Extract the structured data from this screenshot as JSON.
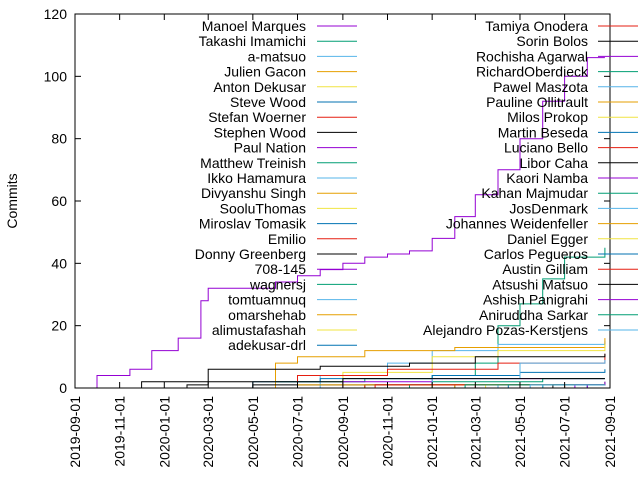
{
  "chart_data": {
    "type": "line",
    "title": "",
    "xlabel": "",
    "ylabel": "Commits",
    "ylim": [
      0,
      120
    ],
    "xlim": [
      "2019-09-01",
      "2021-09-01"
    ],
    "yticks": [
      0,
      20,
      40,
      60,
      80,
      100,
      120
    ],
    "xticks": [
      "2019-09-01",
      "2019-11-01",
      "2020-01-01",
      "2020-03-01",
      "2020-05-01",
      "2020-07-01",
      "2020-09-01",
      "2020-11-01",
      "2021-01-01",
      "2021-03-01",
      "2021-05-01",
      "2021-07-01",
      "2021-09-01"
    ],
    "grid": false,
    "legend_position": "inside, two columns along the top",
    "series": [
      {
        "name": "Manoel Marques",
        "color": "#9400d3",
        "points": [
          [
            "2019-09-01",
            0
          ],
          [
            "2019-10-01",
            4
          ],
          [
            "2019-11-15",
            6
          ],
          [
            "2019-12-15",
            12
          ],
          [
            "2020-01-20",
            16
          ],
          [
            "2020-02-20",
            28
          ],
          [
            "2020-03-01",
            32
          ],
          [
            "2020-06-01",
            34
          ],
          [
            "2020-07-01",
            36
          ],
          [
            "2020-08-01",
            38
          ],
          [
            "2020-09-01",
            40
          ],
          [
            "2020-10-01",
            42
          ],
          [
            "2020-11-01",
            43
          ],
          [
            "2020-12-01",
            44
          ],
          [
            "2021-01-01",
            48
          ],
          [
            "2021-02-01",
            55
          ],
          [
            "2021-03-01",
            62
          ],
          [
            "2021-04-01",
            70
          ],
          [
            "2021-05-01",
            80
          ],
          [
            "2021-06-01",
            92
          ],
          [
            "2021-07-01",
            100
          ],
          [
            "2021-08-01",
            106
          ],
          [
            "2021-08-25",
            106
          ]
        ]
      },
      {
        "name": "Takashi Imamichi",
        "color": "#009e73",
        "points": [
          [
            "2019-12-01",
            0
          ],
          [
            "2020-06-01",
            2
          ],
          [
            "2020-10-01",
            3
          ],
          [
            "2021-01-01",
            4
          ],
          [
            "2021-03-01",
            8
          ],
          [
            "2021-04-01",
            20
          ],
          [
            "2021-05-01",
            27
          ],
          [
            "2021-06-01",
            35
          ],
          [
            "2021-07-01",
            42
          ],
          [
            "2021-08-25",
            45
          ]
        ]
      },
      {
        "name": "a-matsuo",
        "color": "#56b4e9",
        "points": [
          [
            "2020-04-01",
            0
          ],
          [
            "2020-08-01",
            4
          ],
          [
            "2020-11-01",
            8
          ],
          [
            "2021-01-01",
            12
          ],
          [
            "2021-04-01",
            14
          ],
          [
            "2021-08-25",
            15
          ]
        ]
      },
      {
        "name": "Julien Gacon",
        "color": "#e69f00",
        "points": [
          [
            "2020-05-01",
            0
          ],
          [
            "2020-06-01",
            8
          ],
          [
            "2020-07-01",
            10
          ],
          [
            "2020-10-01",
            12
          ],
          [
            "2021-02-01",
            13
          ],
          [
            "2021-08-25",
            16
          ]
        ]
      },
      {
        "name": "Anton Dekusar",
        "color": "#f0e442",
        "points": [
          [
            "2020-05-15",
            0
          ],
          [
            "2020-09-01",
            5
          ],
          [
            "2021-01-01",
            10
          ],
          [
            "2021-04-01",
            12
          ],
          [
            "2021-08-25",
            14
          ]
        ]
      },
      {
        "name": "Steve Wood",
        "color": "#0072b2",
        "points": [
          [
            "2019-12-15",
            0
          ],
          [
            "2020-05-01",
            2
          ],
          [
            "2020-08-01",
            3
          ],
          [
            "2021-01-01",
            4
          ],
          [
            "2021-05-01",
            5
          ],
          [
            "2021-08-25",
            6
          ]
        ]
      },
      {
        "name": "Stefan Woerner",
        "color": "#e51e10",
        "points": [
          [
            "2020-04-01",
            0
          ],
          [
            "2020-07-01",
            4
          ],
          [
            "2020-11-01",
            6
          ],
          [
            "2021-04-01",
            8
          ],
          [
            "2021-08-25",
            11
          ]
        ]
      },
      {
        "name": "Stephen Wood",
        "color": "#000000",
        "points": [
          [
            "2019-12-01",
            0
          ],
          [
            "2020-02-01",
            1
          ],
          [
            "2020-03-01",
            6
          ],
          [
            "2020-08-01",
            7
          ],
          [
            "2020-12-01",
            8
          ],
          [
            "2021-03-01",
            10
          ],
          [
            "2021-08-25",
            11
          ]
        ]
      },
      {
        "name": "Paul Nation",
        "color": "#9400d3",
        "points": [
          [
            "2020-05-01",
            0
          ],
          [
            "2020-09-01",
            2
          ],
          [
            "2021-01-01",
            3
          ],
          [
            "2021-08-25",
            3
          ]
        ]
      },
      {
        "name": "Matthew Treinish",
        "color": "#009e73",
        "points": [
          [
            "2020-05-15",
            0
          ],
          [
            "2020-10-01",
            1
          ],
          [
            "2021-01-01",
            2
          ],
          [
            "2021-06-01",
            3
          ],
          [
            "2021-08-25",
            3
          ]
        ]
      },
      {
        "name": "Ikko Hamamura",
        "color": "#56b4e9",
        "points": [
          [
            "2020-11-01",
            0
          ],
          [
            "2021-01-01",
            3
          ],
          [
            "2021-05-01",
            8
          ],
          [
            "2021-08-25",
            9
          ]
        ]
      },
      {
        "name": "Divyanshu Singh",
        "color": "#e69f00",
        "points": [
          [
            "2021-03-01",
            0
          ],
          [
            "2021-05-01",
            1
          ],
          [
            "2021-08-25",
            2
          ]
        ]
      },
      {
        "name": "SooluThomas",
        "color": "#f0e442",
        "points": [
          [
            "2020-09-01",
            0
          ],
          [
            "2021-01-01",
            1
          ],
          [
            "2021-08-25",
            2
          ]
        ]
      },
      {
        "name": "Miroslav Tomasik",
        "color": "#0072b2",
        "points": [
          [
            "2020-10-01",
            0
          ],
          [
            "2021-02-01",
            1
          ],
          [
            "2021-08-25",
            2
          ]
        ]
      },
      {
        "name": "Emilio",
        "color": "#e51e10",
        "points": [
          [
            "2020-07-01",
            0
          ],
          [
            "2020-10-01",
            1
          ],
          [
            "2021-08-25",
            1
          ]
        ]
      },
      {
        "name": "Donny Greenberg",
        "color": "#000000",
        "points": [
          [
            "2019-11-01",
            0
          ],
          [
            "2019-12-01",
            2
          ],
          [
            "2020-06-01",
            2
          ],
          [
            "2020-09-01",
            3
          ],
          [
            "2021-08-25",
            3
          ]
        ]
      },
      {
        "name": "708-145",
        "color": "#9400d3",
        "points": [
          [
            "2021-01-01",
            0
          ],
          [
            "2021-04-01",
            1
          ],
          [
            "2021-08-25",
            2
          ]
        ]
      },
      {
        "name": "wagnersj",
        "color": "#009e73",
        "points": [
          [
            "2020-06-01",
            0
          ],
          [
            "2020-12-01",
            1
          ],
          [
            "2021-08-25",
            1
          ]
        ]
      },
      {
        "name": "tomtuamnuq",
        "color": "#56b4e9",
        "points": [
          [
            "2021-03-01",
            0
          ],
          [
            "2021-05-01",
            1
          ],
          [
            "2021-08-25",
            1
          ]
        ]
      },
      {
        "name": "omarshehab",
        "color": "#e69f00",
        "points": [
          [
            "2021-02-01",
            0
          ],
          [
            "2021-06-01",
            1
          ],
          [
            "2021-08-25",
            1
          ]
        ]
      },
      {
        "name": "alimustafashah",
        "color": "#f0e442",
        "points": [
          [
            "2020-08-01",
            0
          ],
          [
            "2021-01-01",
            1
          ],
          [
            "2021-08-25",
            1
          ]
        ]
      },
      {
        "name": "adekusar-drl",
        "color": "#0072b2",
        "points": [
          [
            "2021-04-01",
            0
          ],
          [
            "2021-06-01",
            1
          ],
          [
            "2021-08-25",
            1
          ]
        ]
      },
      {
        "name": "Tamiya Onodera",
        "color": "#e51e10",
        "points": [
          [
            "2021-05-01",
            0
          ],
          [
            "2021-07-01",
            1
          ],
          [
            "2021-08-25",
            1
          ]
        ]
      },
      {
        "name": "Sorin Bolos",
        "color": "#000000",
        "points": [
          [
            "2020-02-01",
            0
          ],
          [
            "2020-05-01",
            1
          ],
          [
            "2021-08-25",
            1
          ]
        ]
      },
      {
        "name": "Rochisha Agarwal",
        "color": "#9400d3",
        "points": [
          [
            "2021-06-01",
            0
          ],
          [
            "2021-07-01",
            1
          ],
          [
            "2021-08-25",
            1
          ]
        ]
      },
      {
        "name": "RichardOberdieck",
        "color": "#009e73",
        "points": [
          [
            "2021-05-01",
            0
          ],
          [
            "2021-08-01",
            1
          ],
          [
            "2021-08-25",
            1
          ]
        ]
      },
      {
        "name": "Pawel Maszota",
        "color": "#56b4e9",
        "points": [
          [
            "2021-03-01",
            0
          ],
          [
            "2021-04-01",
            1
          ],
          [
            "2021-08-25",
            1
          ]
        ]
      },
      {
        "name": "Pauline Ollitrault",
        "color": "#e69f00",
        "points": [
          [
            "2020-11-01",
            0
          ],
          [
            "2021-02-01",
            1
          ],
          [
            "2021-08-25",
            1
          ]
        ]
      },
      {
        "name": "Milos Prokop",
        "color": "#f0e442",
        "points": [
          [
            "2021-04-01",
            0
          ],
          [
            "2021-07-01",
            1
          ],
          [
            "2021-08-25",
            1
          ]
        ]
      },
      {
        "name": "Martin Beseda",
        "color": "#0072b2",
        "points": [
          [
            "2021-06-01",
            0
          ],
          [
            "2021-08-01",
            1
          ],
          [
            "2021-08-25",
            1
          ]
        ]
      },
      {
        "name": "Luciano Bello",
        "color": "#e51e10",
        "points": [
          [
            "2020-12-01",
            0
          ],
          [
            "2021-03-01",
            1
          ],
          [
            "2021-08-25",
            1
          ]
        ]
      },
      {
        "name": "Libor Caha",
        "color": "#000000",
        "points": [
          [
            "2021-02-01",
            0
          ],
          [
            "2021-05-01",
            1
          ],
          [
            "2021-08-25",
            1
          ]
        ]
      },
      {
        "name": "Kaori Namba",
        "color": "#9400d3",
        "points": [
          [
            "2021-07-01",
            0
          ],
          [
            "2021-08-01",
            1
          ],
          [
            "2021-08-25",
            1
          ]
        ]
      },
      {
        "name": "Kahan Majmudar",
        "color": "#009e73",
        "points": [
          [
            "2021-01-01",
            0
          ],
          [
            "2021-06-01",
            1
          ],
          [
            "2021-08-25",
            1
          ]
        ]
      },
      {
        "name": "JosDenmark",
        "color": "#56b4e9",
        "points": [
          [
            "2021-05-01",
            0
          ],
          [
            "2021-06-01",
            1
          ],
          [
            "2021-08-25",
            1
          ]
        ]
      },
      {
        "name": "Johannes Weidenfeller",
        "color": "#e69f00",
        "points": [
          [
            "2020-06-01",
            0
          ],
          [
            "2020-07-01",
            1
          ],
          [
            "2021-08-25",
            1
          ]
        ]
      },
      {
        "name": "Daniel Egger",
        "color": "#f0e442",
        "points": [
          [
            "2021-03-01",
            0
          ],
          [
            "2021-03-15",
            1
          ],
          [
            "2021-08-25",
            1
          ]
        ]
      },
      {
        "name": "Carlos Pegueros",
        "color": "#0072b2",
        "points": [
          [
            "2021-04-01",
            0
          ],
          [
            "2021-04-15",
            1
          ],
          [
            "2021-08-25",
            1
          ]
        ]
      },
      {
        "name": "Austin Gilliam",
        "color": "#e51e10",
        "points": [
          [
            "2020-09-01",
            0
          ],
          [
            "2020-10-15",
            1
          ],
          [
            "2021-08-25",
            1
          ]
        ]
      },
      {
        "name": "Atsushi Matsuo",
        "color": "#000000",
        "points": [
          [
            "2021-06-01",
            0
          ],
          [
            "2021-06-15",
            1
          ],
          [
            "2021-08-25",
            1
          ]
        ]
      },
      {
        "name": "Ashish Panigrahi",
        "color": "#9400d3",
        "points": [
          [
            "2021-07-01",
            0
          ],
          [
            "2021-07-15",
            1
          ],
          [
            "2021-08-25",
            1
          ]
        ]
      },
      {
        "name": "Aniruddha Sarkar",
        "color": "#009e73",
        "points": [
          [
            "2021-02-01",
            0
          ],
          [
            "2021-02-15",
            1
          ],
          [
            "2021-08-25",
            1
          ]
        ]
      },
      {
        "name": "Alejandro Pozas-Kerstjens",
        "color": "#56b4e9",
        "points": [
          [
            "2021-05-01",
            0
          ],
          [
            "2021-05-15",
            1
          ],
          [
            "2021-08-25",
            1
          ]
        ]
      }
    ]
  }
}
